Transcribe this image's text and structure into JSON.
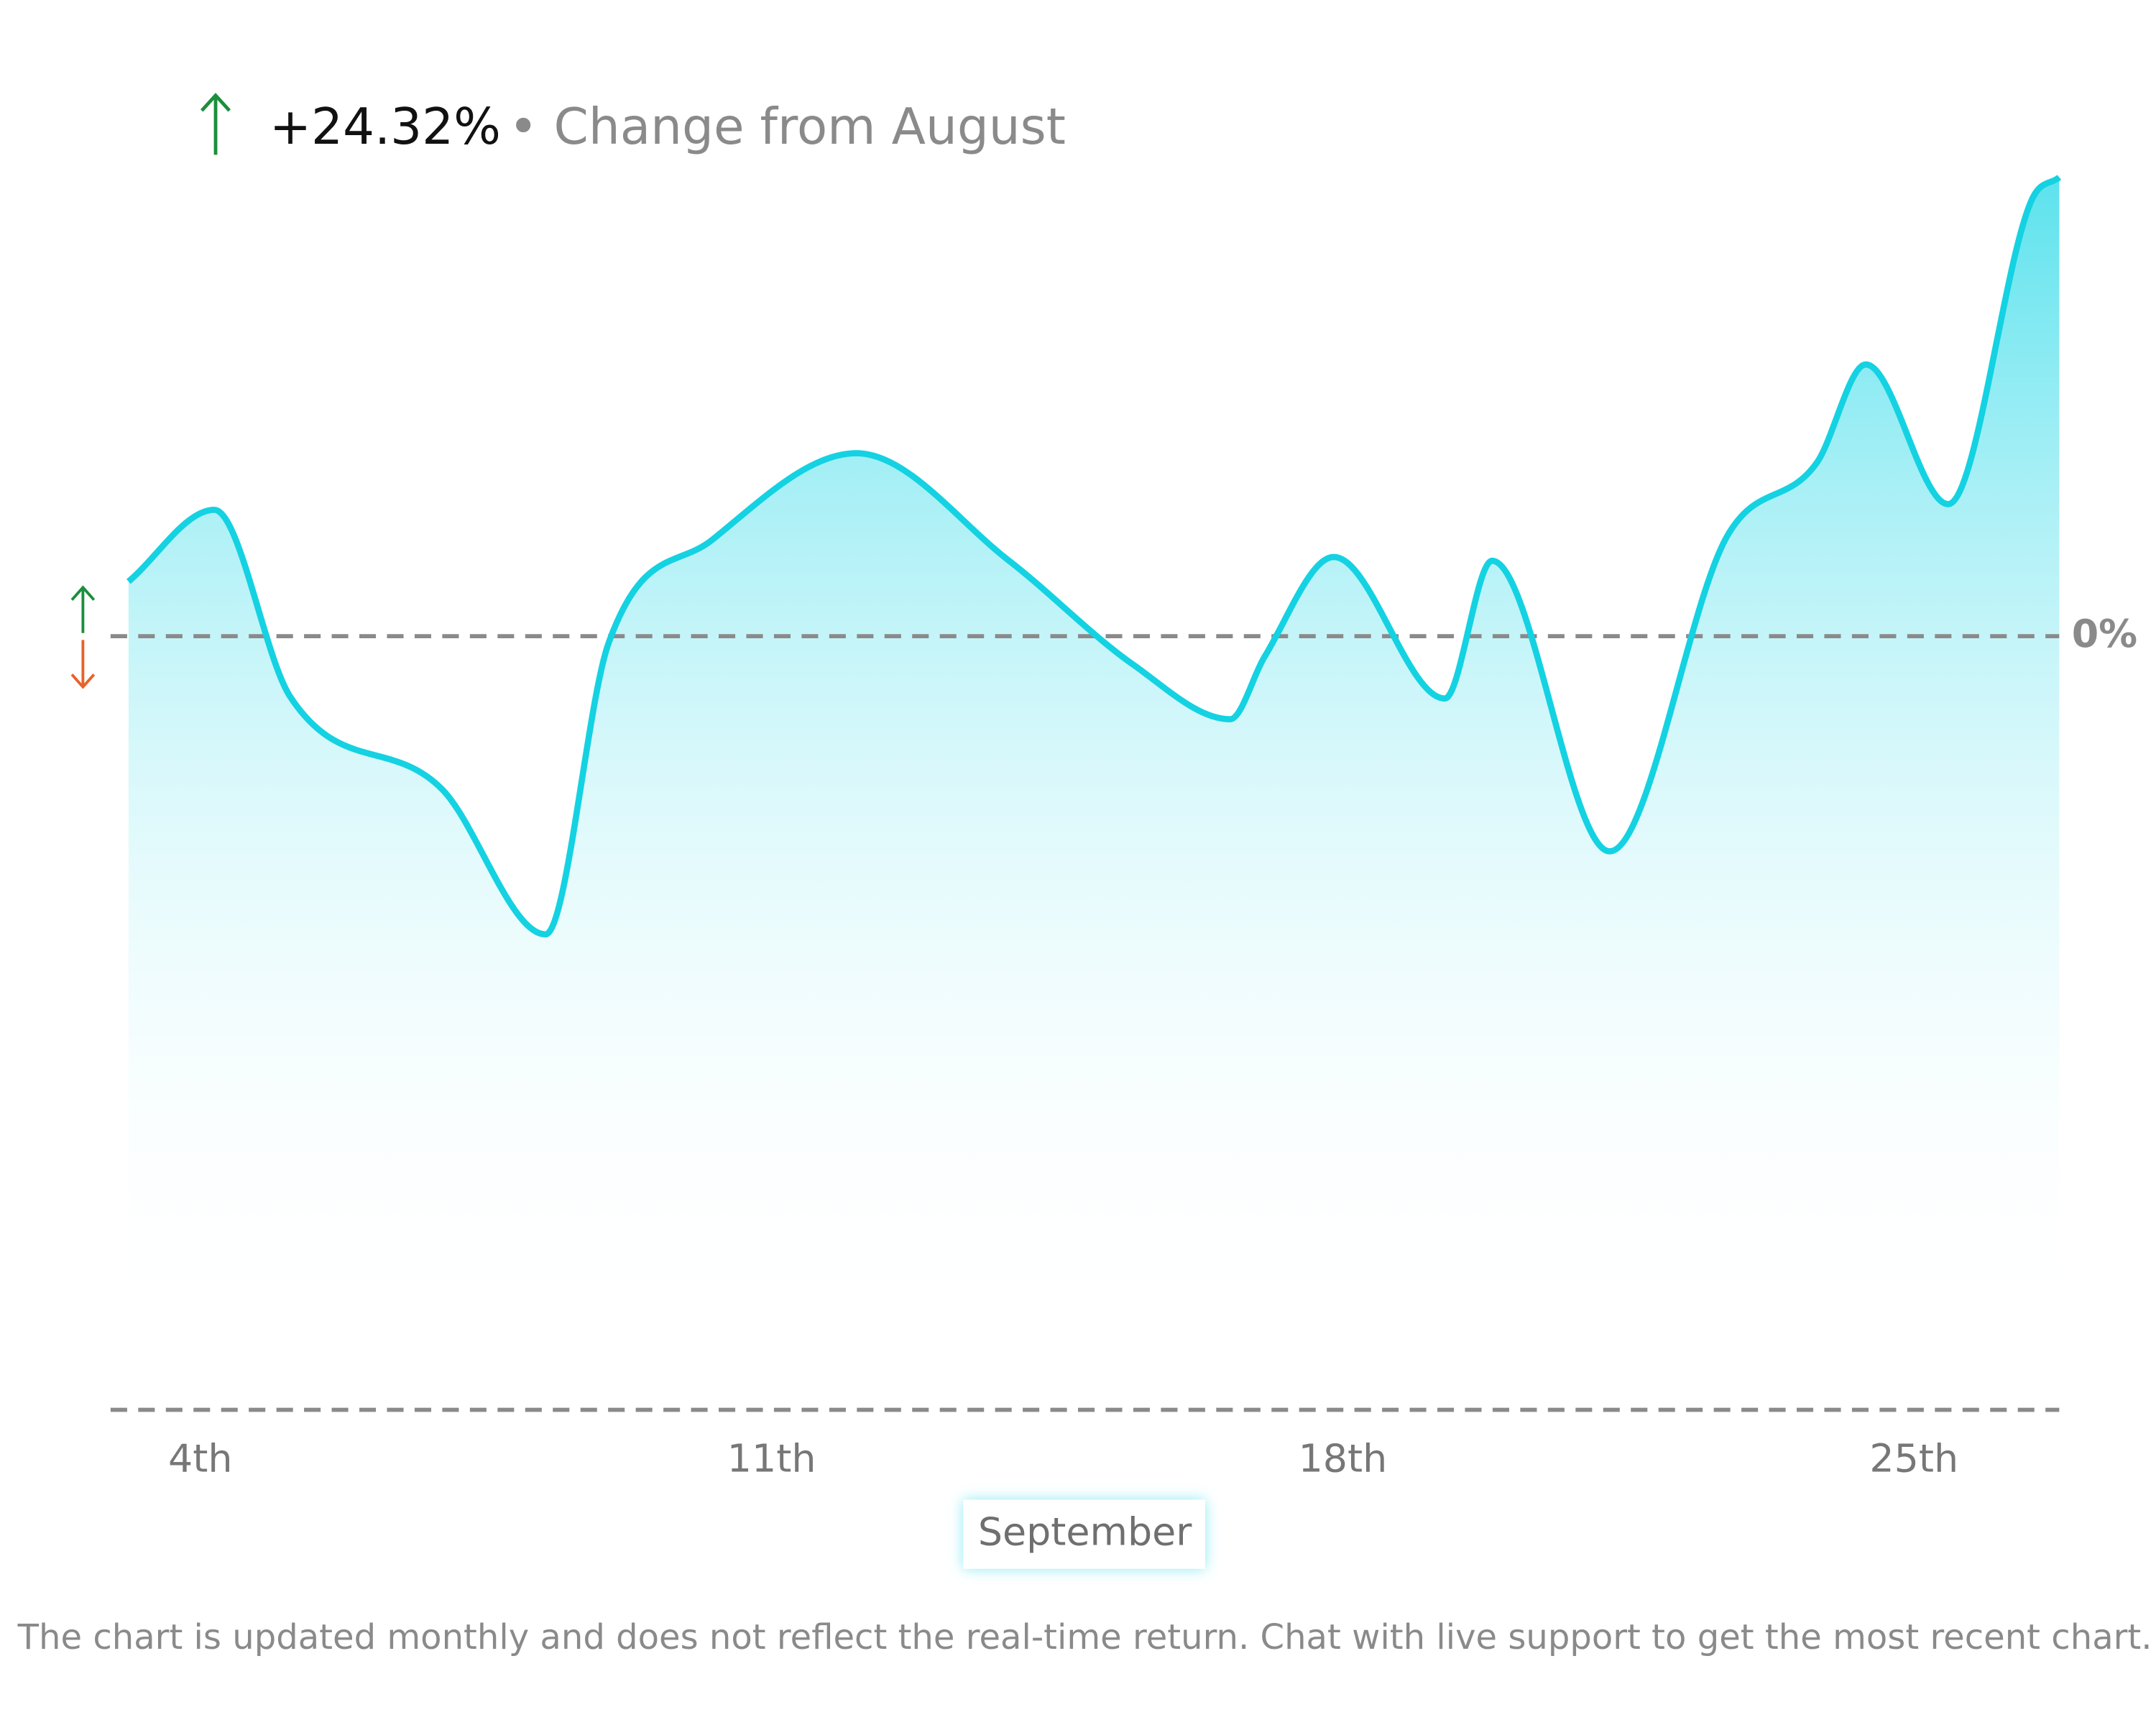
{
  "chart_data": {
    "type": "area",
    "title": "+24.32%",
    "subtitle": "• Change from August",
    "x": [
      3.12,
      4.17,
      5.1,
      6.96,
      8.23,
      9.0,
      10.27,
      12.04,
      13.91,
      15.43,
      16.62,
      17.04,
      17.89,
      19.25,
      19.83,
      21.27,
      22.71,
      23.81,
      24.41,
      25.42,
      26.44,
      26.78
    ],
    "values": [
      2.9,
      6.7,
      -3.2,
      -8.1,
      -15.8,
      -0.4,
      5.1,
      9.7,
      4.0,
      -1.5,
      -4.4,
      -1.1,
      4.2,
      -3.3,
      4.0,
      -11.4,
      5.3,
      9.2,
      14.4,
      7.0,
      23.1,
      24.32
    ],
    "color": "#14d2e2",
    "xlim": [
      3.12,
      26.78
    ],
    "ylim": [
      -41,
      25
    ],
    "xticks": [
      {
        "value": 4,
        "label": "4th"
      },
      {
        "value": 11,
        "label": "11th"
      },
      {
        "value": 18,
        "label": "18th"
      },
      {
        "value": 25,
        "label": "25th"
      }
    ],
    "yticks": [
      {
        "value": 0,
        "label": "0%"
      }
    ],
    "xlabel": "September",
    "note": "The chart is updated monthly and does not reflect the real-time return. Chat with live support to get the most recent chart."
  }
}
